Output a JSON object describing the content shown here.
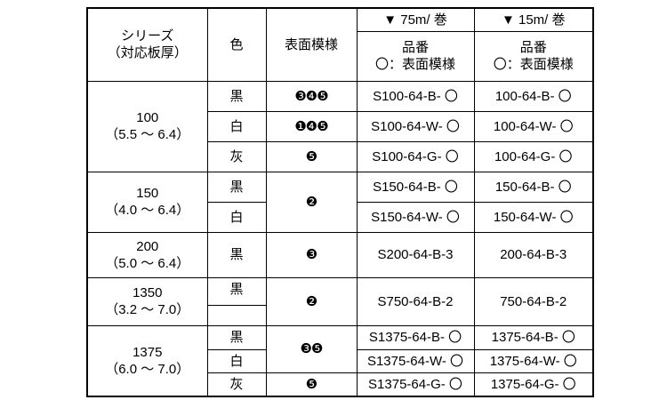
{
  "header": {
    "series": "シリーズ",
    "thickness": "（対応板厚）",
    "color": "色",
    "pattern": "表面模様",
    "roll75": "▼ 75m/ 巻",
    "roll15": "▼ 15m/ 巻",
    "part_no": "品番",
    "part_note": "〇：表面模様"
  },
  "groups": [
    {
      "series": "100",
      "range": "（5.5 ～ 6.4）",
      "rows": [
        {
          "color": "黒",
          "pattern": "❸❹❺",
          "p75": "S100-64-B- 〇",
          "p15": "100-64-B- 〇"
        },
        {
          "color": "白",
          "pattern": "❶❹❺",
          "p75": "S100-64-W- 〇",
          "p15": "100-64-W- 〇"
        },
        {
          "color": "灰",
          "pattern": "❺",
          "p75": "S100-64-G- 〇",
          "p15": "100-64-G- 〇"
        }
      ]
    },
    {
      "series": "150",
      "range": "（4.0 ～ 6.4）",
      "pattern": "❷",
      "rows": [
        {
          "color": "黒",
          "p75": "S150-64-B- 〇",
          "p15": "150-64-B- 〇"
        },
        {
          "color": "白",
          "p75": "S150-64-W- 〇",
          "p15": "150-64-W- 〇"
        }
      ]
    },
    {
      "series": "200",
      "range": "（5.0 ～ 6.4）",
      "rows": [
        {
          "color": "黒",
          "pattern": "❸",
          "p75": "S200-64-B-3",
          "p15": "200-64-B-3"
        }
      ]
    },
    {
      "series": "1350",
      "range": "（3.2 ～ 7.0）",
      "pattern": "❷",
      "p75": "S750-64-B-2",
      "p15": "750-64-B-2",
      "rows": [
        {
          "color": "黒"
        },
        {
          "color": ""
        }
      ]
    },
    {
      "series": "1375",
      "range": "（6.0 ～ 7.0）",
      "rows": [
        {
          "color": "黒",
          "pattern": "❸❺",
          "p75": "S1375-64-B- 〇",
          "p15": "1375-64-B- 〇"
        },
        {
          "color": "白",
          "p75": "S1375-64-W- 〇",
          "p15": "1375-64-W- 〇"
        },
        {
          "color": "灰",
          "pattern": "❺",
          "p75": "S1375-64-G- 〇",
          "p15": "1375-64-G- 〇"
        }
      ]
    }
  ]
}
